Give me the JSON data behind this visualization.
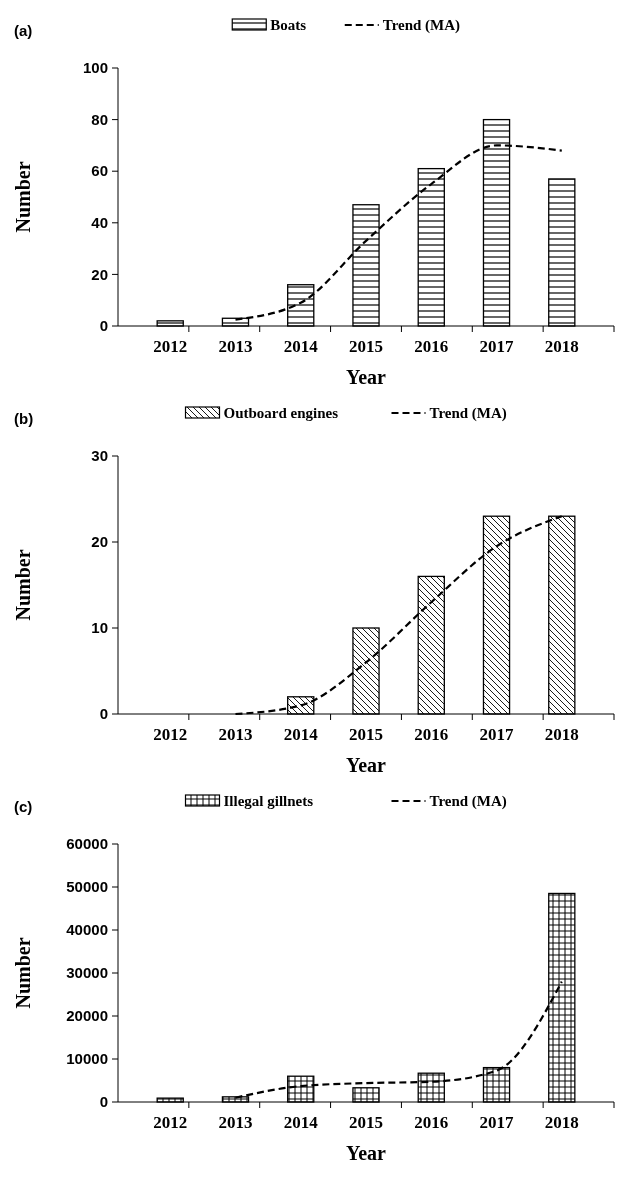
{
  "chart_data": [
    {
      "type": "bar",
      "annotations": [
        "(a)"
      ],
      "xlabel": "Year",
      "ylabel": "Number",
      "categories": [
        "2012",
        "2013",
        "2014",
        "2015",
        "2016",
        "2017",
        "2018"
      ],
      "ylim": [
        0,
        100
      ],
      "yticks": [
        0,
        20,
        40,
        60,
        80,
        100
      ],
      "legend": "top",
      "series": [
        {
          "name": "Boats",
          "color": "#000000",
          "values": [
            2,
            3,
            16,
            47,
            61,
            80,
            57
          ]
        },
        {
          "name": "Trend (MA)",
          "type": "line",
          "line_style": "dashed",
          "color": "#000000",
          "values": [
            null,
            2.5,
            9,
            33,
            55,
            70,
            68
          ]
        }
      ]
    },
    {
      "type": "bar",
      "annotations": [
        "(b)"
      ],
      "xlabel": "Year",
      "ylabel": "Number",
      "categories": [
        "2012",
        "2013",
        "2014",
        "2015",
        "2016",
        "2017",
        "2018"
      ],
      "ylim": [
        0,
        30
      ],
      "yticks": [
        0,
        10,
        20,
        30
      ],
      "legend": "top",
      "series": [
        {
          "name": "Outboard engines",
          "color": "#000000",
          "values": [
            0,
            0,
            2,
            10,
            16,
            23,
            23
          ]
        },
        {
          "name": "Trend (MA)",
          "type": "line",
          "line_style": "dashed",
          "color": "#000000",
          "values": [
            null,
            0,
            1,
            6,
            13,
            19.5,
            23
          ]
        }
      ]
    },
    {
      "type": "bar",
      "annotations": [
        "(c)"
      ],
      "xlabel": "Year",
      "ylabel": "Number",
      "categories": [
        "2012",
        "2013",
        "2014",
        "2015",
        "2016",
        "2017",
        "2018"
      ],
      "ylim": [
        0,
        60000
      ],
      "yticks": [
        0,
        10000,
        20000,
        30000,
        40000,
        50000,
        60000
      ],
      "legend": "top",
      "series": [
        {
          "name": "Illegal gillnets",
          "color": "#000000",
          "values": [
            900,
            1200,
            6000,
            3300,
            6700,
            8000,
            48500
          ]
        },
        {
          "name": "Trend (MA)",
          "type": "line",
          "line_style": "dashed",
          "color": "#000000",
          "values": [
            null,
            1000,
            3700,
            4400,
            4700,
            7300,
            28000
          ]
        }
      ]
    }
  ]
}
